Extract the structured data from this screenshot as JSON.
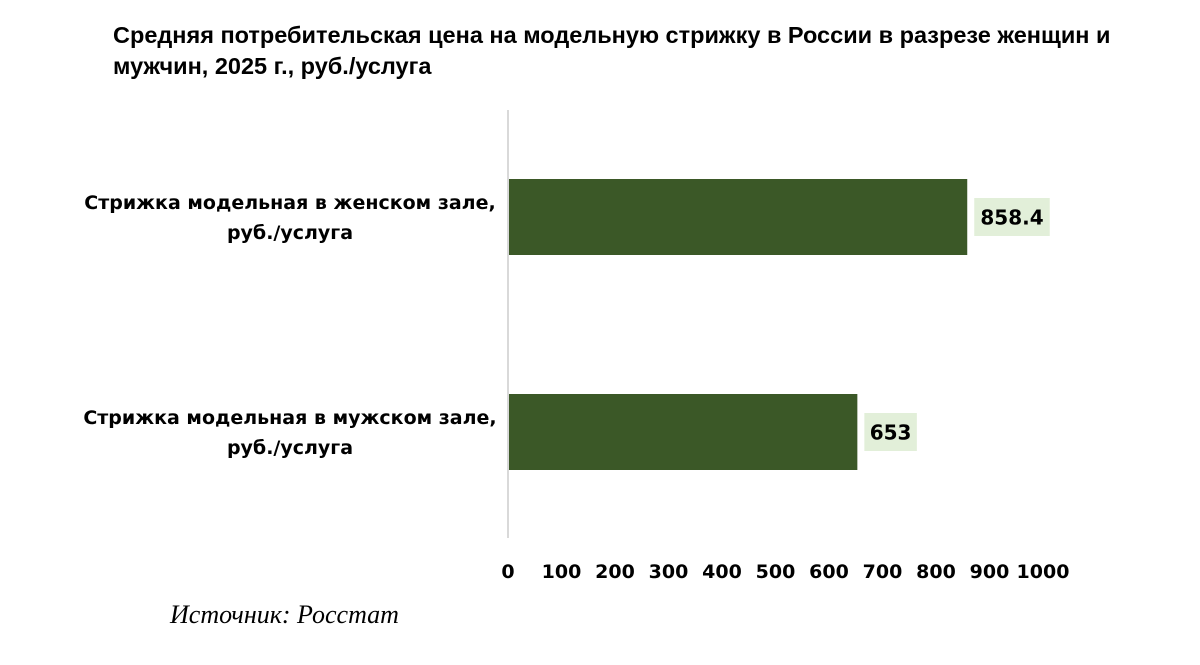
{
  "chart_data": {
    "type": "bar",
    "orientation": "horizontal",
    "title": "Средняя потребительская цена на модельную стрижку в России в разрезе женщин и мужчин, 2025 г., руб./услуга",
    "categories": [
      [
        "Стрижка модельная в женском зале,",
        "руб./услуга"
      ],
      [
        "Стрижка модельная в мужском зале,",
        "руб./услуга"
      ]
    ],
    "values": [
      858.4,
      653
    ],
    "value_labels": [
      "858.4",
      "653"
    ],
    "xlim": [
      0,
      1000
    ],
    "x_ticks": [
      0,
      100,
      200,
      300,
      400,
      500,
      600,
      700,
      800,
      900,
      1000
    ],
    "grid": false,
    "legend": "none",
    "bar_color": "#3b5827",
    "label_bg_color": "#e2efd9",
    "axis_color": "#d9d9d9"
  },
  "source": "Источник: Росстат"
}
